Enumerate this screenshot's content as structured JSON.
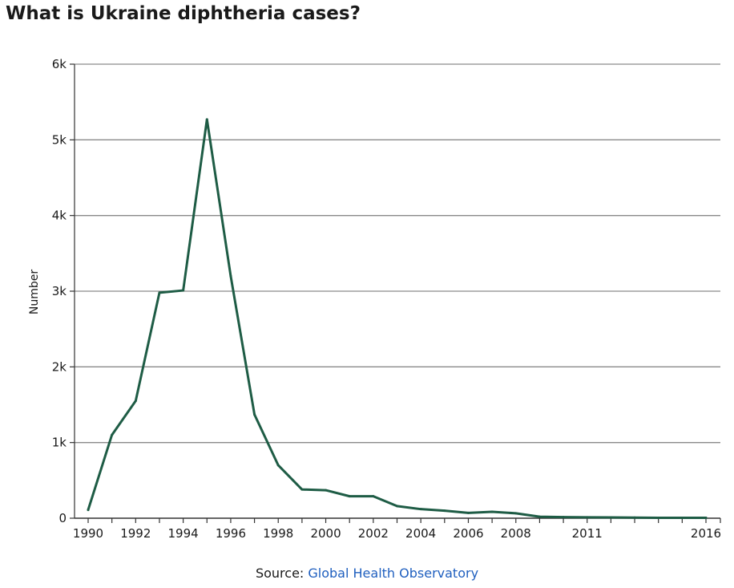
{
  "chart_data": {
    "type": "line",
    "title": "What is Ukraine diphtheria cases?",
    "xlabel": "",
    "ylabel": "Number",
    "x": [
      1990,
      1991,
      1992,
      1993,
      1994,
      1995,
      1996,
      1997,
      1998,
      1999,
      2000,
      2001,
      2002,
      2003,
      2004,
      2005,
      2006,
      2007,
      2008,
      2009,
      2010,
      2011,
      2012,
      2013,
      2014,
      2015,
      2016
    ],
    "series": [
      {
        "values": [
          110,
          1100,
          1550,
          2980,
          3010,
          5270,
          3200,
          1370,
          700,
          380,
          370,
          290,
          290,
          160,
          120,
          100,
          70,
          85,
          65,
          20,
          15,
          12,
          10,
          8,
          5,
          5,
          5
        ]
      }
    ],
    "ylim": [
      0,
      6000
    ],
    "xlim": [
      1990,
      2016
    ],
    "y_ticks": [
      {
        "value": 0,
        "label": "0"
      },
      {
        "value": 1000,
        "label": "1k"
      },
      {
        "value": 2000,
        "label": "2k"
      },
      {
        "value": 3000,
        "label": "3k"
      },
      {
        "value": 4000,
        "label": "4k"
      },
      {
        "value": 5000,
        "label": "5k"
      },
      {
        "value": 6000,
        "label": "6k"
      }
    ],
    "x_tick_marks": [
      1990,
      1991,
      1992,
      1993,
      1994,
      1995,
      1996,
      1997,
      1998,
      1999,
      2000,
      2001,
      2002,
      2003,
      2004,
      2005,
      2006,
      2007,
      2008,
      2009,
      2010,
      2011,
      2012,
      2013,
      2014,
      2015,
      2016
    ],
    "x_tick_labels": [
      {
        "value": 1990,
        "label": "1990"
      },
      {
        "value": 1992,
        "label": "1992"
      },
      {
        "value": 1994,
        "label": "1994"
      },
      {
        "value": 1996,
        "label": "1996"
      },
      {
        "value": 1998,
        "label": "1998"
      },
      {
        "value": 2000,
        "label": "2000"
      },
      {
        "value": 2002,
        "label": "2002"
      },
      {
        "value": 2004,
        "label": "2004"
      },
      {
        "value": 2006,
        "label": "2006"
      },
      {
        "value": 2008,
        "label": "2008"
      },
      {
        "value": 2011,
        "label": "2011"
      },
      {
        "value": 2016,
        "label": "2016"
      }
    ],
    "grid": "horizontal",
    "line_color": "#1e5c45",
    "grid_color": "#8a8a8a",
    "source": {
      "prefix": "Source: ",
      "name": "Global Health Observatory",
      "link_color": "#1f5fbf"
    }
  }
}
